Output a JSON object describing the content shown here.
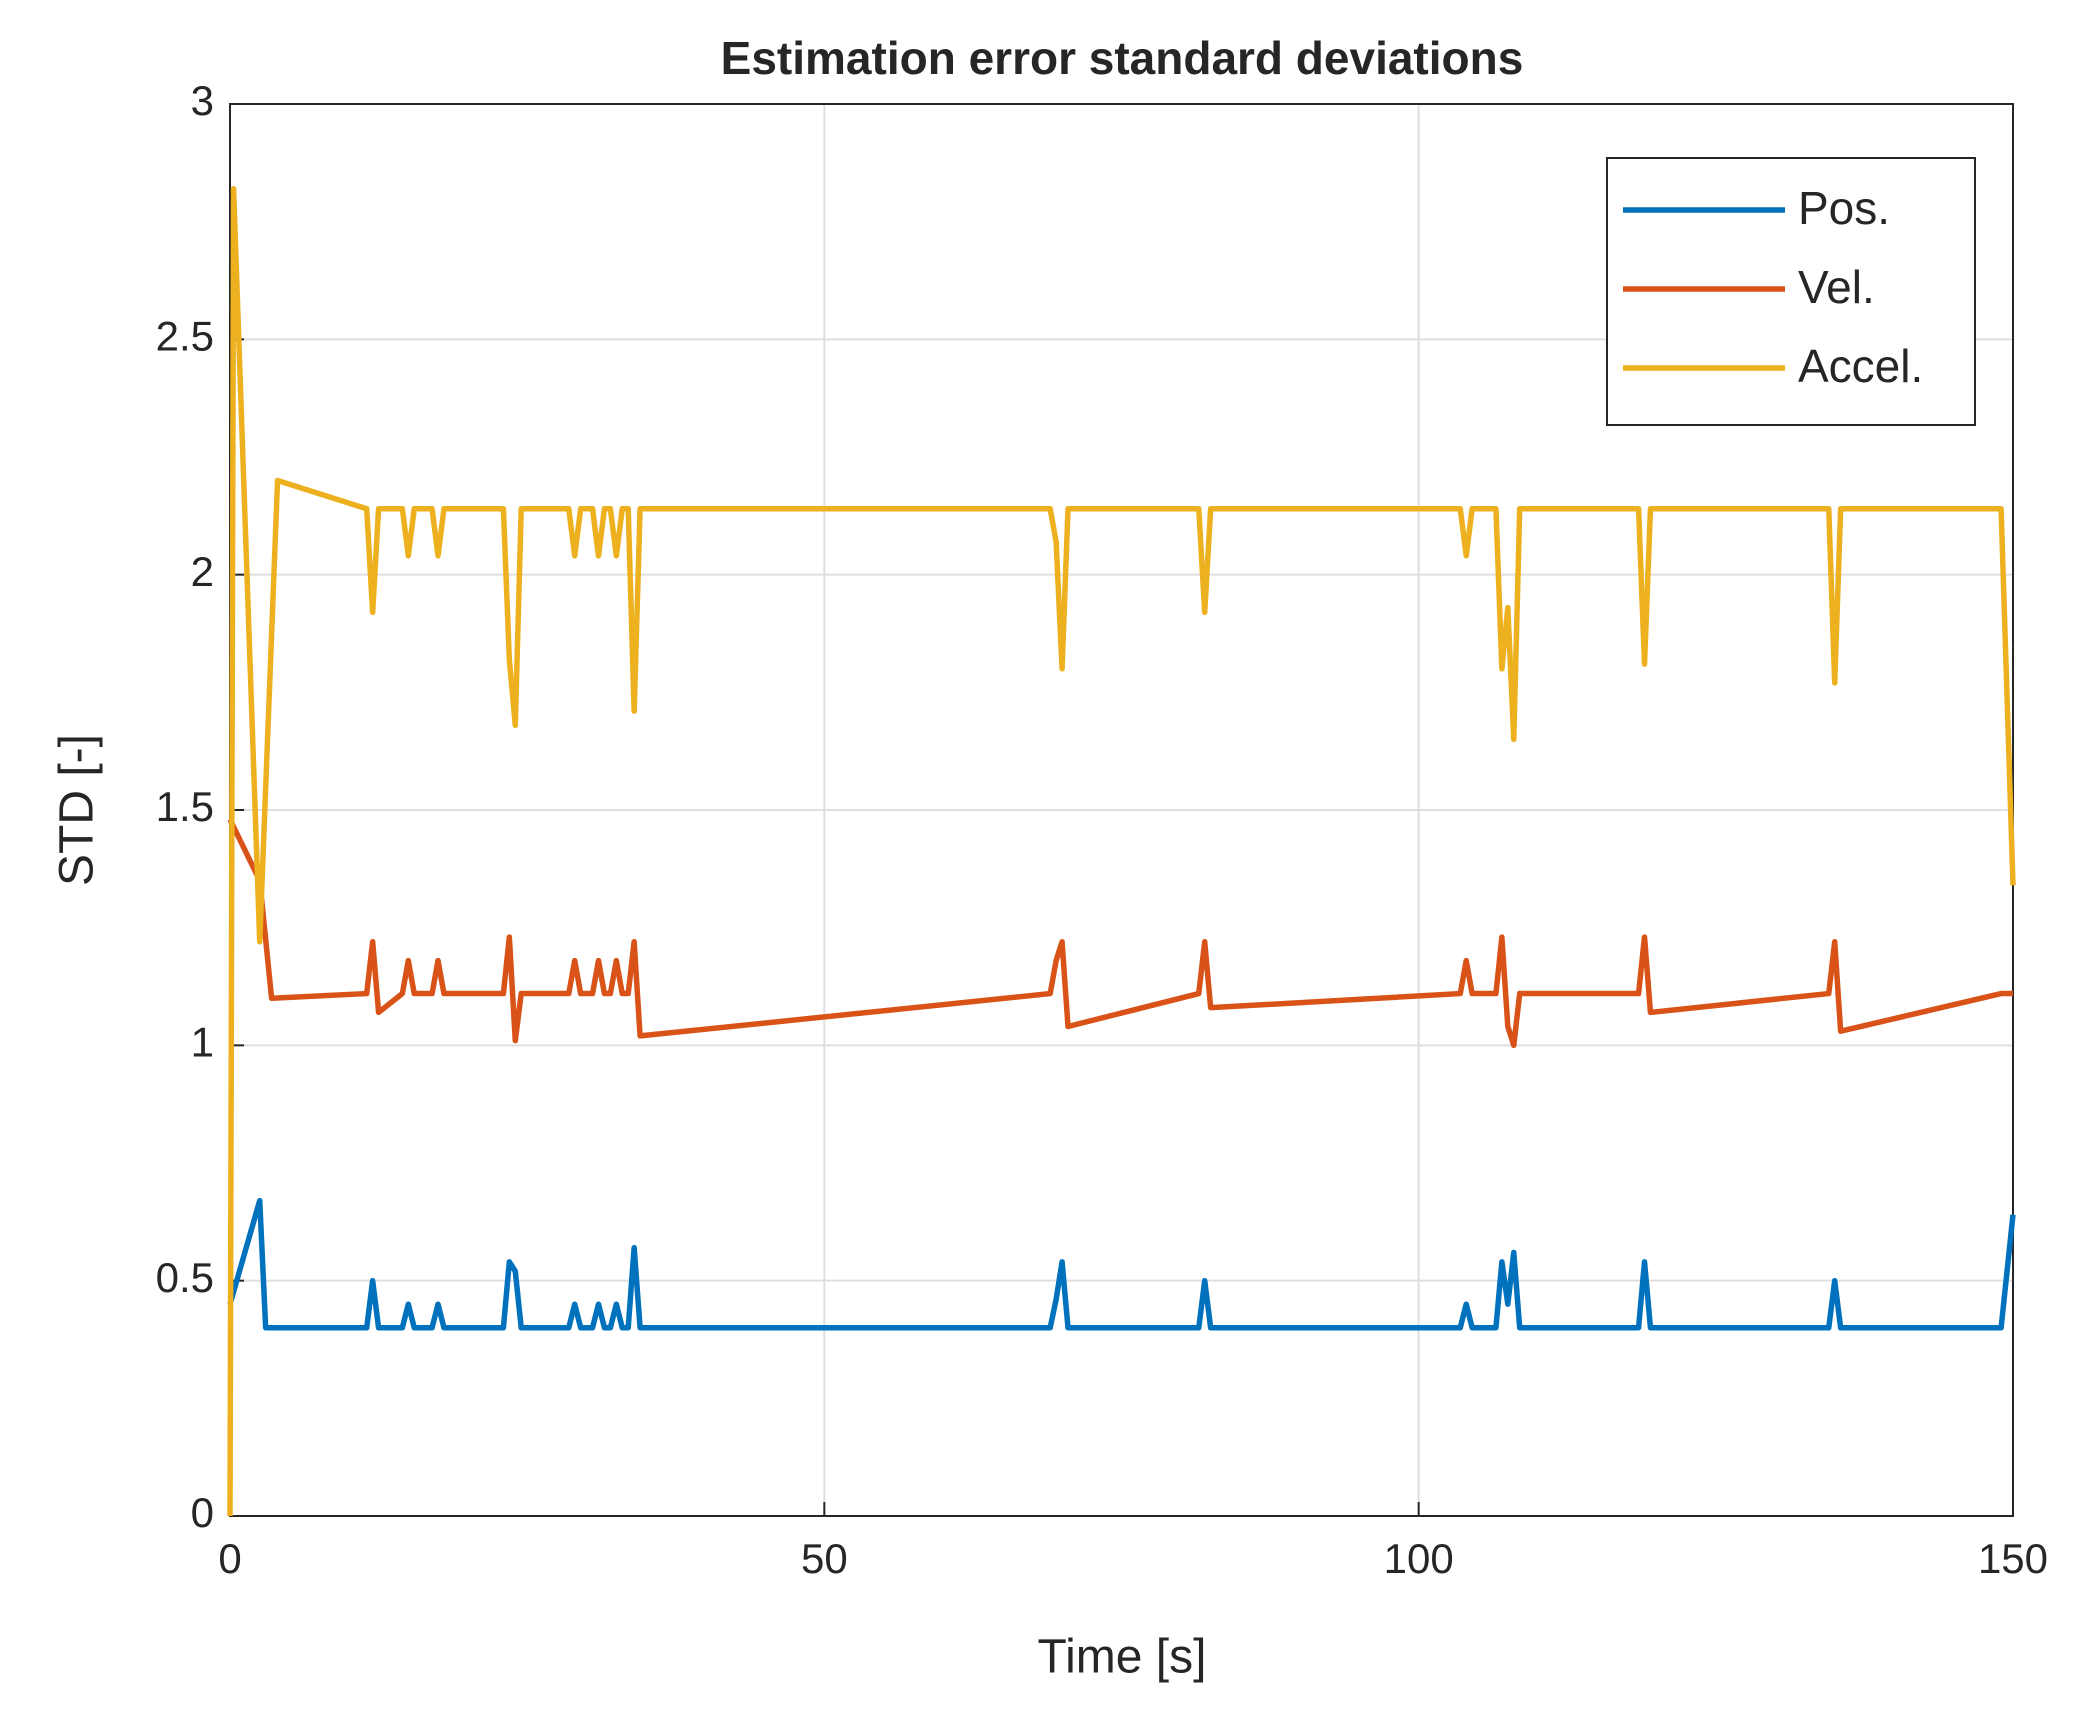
{
  "chart_data": {
    "type": "line",
    "title": "Estimation error standard deviations",
    "xlabel": "Time [s]",
    "ylabel": "STD [-]",
    "xlim": [
      0,
      150
    ],
    "xticks": [
      0,
      50,
      100,
      150
    ],
    "ylim": [
      0,
      3
    ],
    "yticks": [
      0,
      0.5,
      1,
      1.5,
      2,
      2.5,
      3
    ],
    "grid": true,
    "legend": "upper right",
    "series": [
      {
        "name": "Pos.",
        "color": "#0072bd",
        "x": [
          0,
          2.5,
          3,
          11.5,
          12,
          12.5,
          14.5,
          15,
          15.5,
          17,
          17.5,
          18,
          23,
          23.5,
          24,
          24.5,
          28.5,
          29,
          29.5,
          30.5,
          31,
          31.5,
          32,
          32.5,
          33,
          33.5,
          34,
          34.5,
          69,
          69.5,
          70,
          70.5,
          81.5,
          82,
          82.5,
          103.5,
          104,
          104.5,
          106.5,
          107,
          107.5,
          108,
          108.5,
          118.5,
          119,
          119.5,
          134.5,
          135,
          135.5,
          149,
          150
        ],
        "values": [
          0.45,
          0.67,
          0.4,
          0.4,
          0.5,
          0.4,
          0.4,
          0.45,
          0.4,
          0.4,
          0.45,
          0.4,
          0.4,
          0.54,
          0.52,
          0.4,
          0.4,
          0.45,
          0.4,
          0.4,
          0.45,
          0.4,
          0.4,
          0.45,
          0.4,
          0.4,
          0.57,
          0.4,
          0.4,
          0.46,
          0.54,
          0.4,
          0.4,
          0.5,
          0.4,
          0.4,
          0.45,
          0.4,
          0.4,
          0.54,
          0.45,
          0.56,
          0.4,
          0.4,
          0.54,
          0.4,
          0.4,
          0.5,
          0.4,
          0.4,
          0.64
        ]
      },
      {
        "name": "Vel.",
        "color": "#d95319",
        "x": [
          0,
          2.5,
          3.5,
          11.5,
          12,
          12.5,
          14.5,
          15,
          15.5,
          17,
          17.5,
          18,
          23,
          23.5,
          24,
          24.5,
          28.5,
          29,
          29.5,
          30.5,
          31,
          31.5,
          32,
          32.5,
          33,
          33.5,
          34,
          34.5,
          69,
          69.5,
          70,
          70.5,
          81.5,
          82,
          82.5,
          103.5,
          104,
          104.5,
          106.5,
          107,
          107.5,
          108,
          108.5,
          118.5,
          119,
          119.5,
          134.5,
          135,
          135.5,
          149,
          150
        ],
        "values": [
          1.48,
          1.35,
          1.1,
          1.11,
          1.22,
          1.07,
          1.11,
          1.18,
          1.11,
          1.11,
          1.18,
          1.11,
          1.11,
          1.23,
          1.01,
          1.11,
          1.11,
          1.18,
          1.11,
          1.11,
          1.18,
          1.11,
          1.11,
          1.18,
          1.11,
          1.11,
          1.22,
          1.02,
          1.11,
          1.18,
          1.22,
          1.04,
          1.11,
          1.22,
          1.08,
          1.11,
          1.18,
          1.11,
          1.11,
          1.23,
          1.04,
          1.0,
          1.11,
          1.11,
          1.23,
          1.07,
          1.11,
          1.22,
          1.03,
          1.11,
          1.11
        ]
      },
      {
        "name": "Accel.",
        "color": "#edb120",
        "x": [
          0,
          0.3,
          2.5,
          4,
          11.5,
          12,
          12.5,
          14.5,
          15,
          15.5,
          17,
          17.5,
          18,
          23,
          23.5,
          24,
          24.5,
          28.5,
          29,
          29.5,
          30.5,
          31,
          31.5,
          32,
          32.5,
          33,
          33.5,
          34,
          34.5,
          69,
          69.5,
          70,
          70.5,
          81.5,
          82,
          82.5,
          103.5,
          104,
          104.5,
          106.5,
          107,
          107.5,
          108,
          108.5,
          118.5,
          119,
          119.5,
          134.5,
          135,
          135.5,
          149,
          150
        ],
        "values": [
          0,
          2.82,
          1.22,
          2.2,
          2.14,
          1.92,
          2.14,
          2.14,
          2.04,
          2.14,
          2.14,
          2.04,
          2.14,
          2.14,
          1.82,
          1.68,
          2.14,
          2.14,
          2.04,
          2.14,
          2.14,
          2.04,
          2.14,
          2.14,
          2.04,
          2.14,
          2.14,
          1.71,
          2.14,
          2.14,
          2.07,
          1.8,
          2.14,
          2.14,
          1.92,
          2.14,
          2.14,
          2.04,
          2.14,
          2.14,
          1.8,
          1.93,
          1.65,
          2.14,
          2.14,
          1.81,
          2.14,
          2.14,
          1.77,
          2.14,
          2.14,
          1.34
        ]
      }
    ]
  }
}
